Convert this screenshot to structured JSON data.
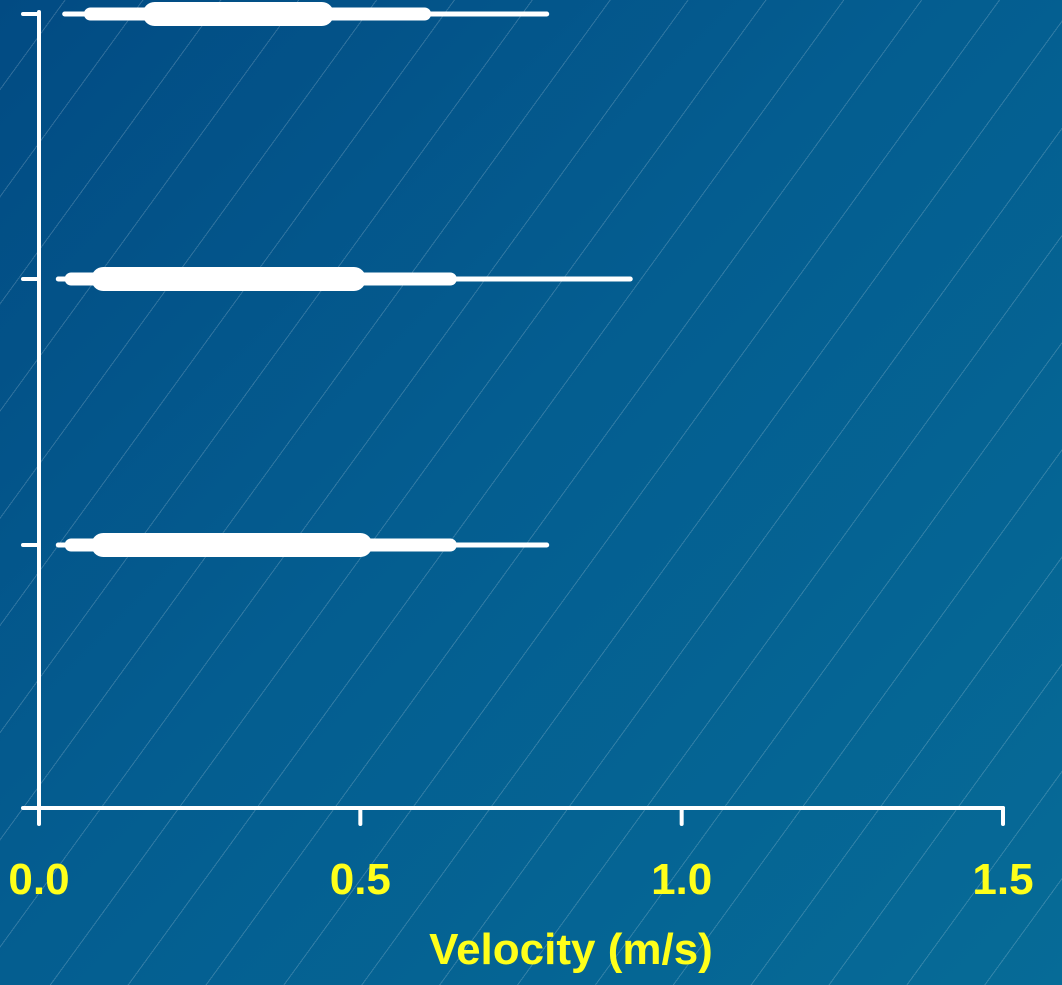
{
  "chart_data": {
    "type": "eye-plot",
    "xlabel": "Velocity (m/s)",
    "xlim": [
      0.0,
      1.5
    ],
    "x_ticks": [
      "0.0",
      "0.5",
      "1.0",
      "1.5"
    ],
    "x_tick_values": [
      0.0,
      0.5,
      1.0,
      1.5
    ],
    "label_color": "#ffff1a",
    "mark_color": "#ffffff",
    "grid": false,
    "series": [
      {
        "rank": 1,
        "min": 0.04,
        "q025": 0.08,
        "q25": 0.18,
        "median": 0.3,
        "q75": 0.44,
        "q975": 0.6,
        "max": 0.79
      },
      {
        "rank": 2,
        "min": 0.03,
        "q025": 0.05,
        "q25": 0.1,
        "median": 0.28,
        "q75": 0.49,
        "q975": 0.64,
        "max": 0.92
      },
      {
        "rank": 3,
        "min": 0.03,
        "q025": 0.05,
        "q25": 0.1,
        "median": 0.29,
        "q75": 0.5,
        "q975": 0.64,
        "max": 0.79
      }
    ]
  }
}
